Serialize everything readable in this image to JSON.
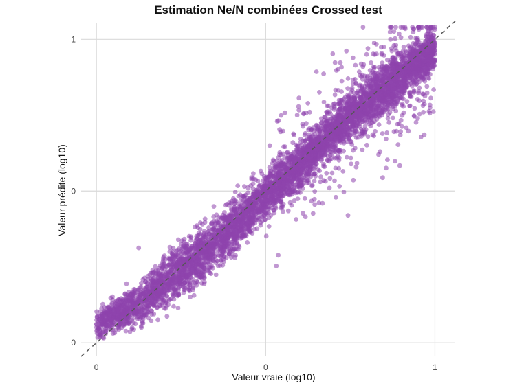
{
  "chart_data": {
    "type": "scatter",
    "title": "Estimation Ne/N combinées Crossed test",
    "xlabel": "Valeur vraie (log10)",
    "ylabel": "Valeur prédite (log10)",
    "x_ticks": [
      "0",
      "0",
      "1"
    ],
    "y_ticks": [
      "0",
      "0",
      "1"
    ],
    "x_tick_values": [
      -4,
      -2,
      0
    ],
    "y_tick_values": [
      -4,
      -2,
      0
    ],
    "xlim": [
      -4.18,
      0.24
    ],
    "ylim": [
      -4.17,
      0.22
    ],
    "grid": true,
    "point_color": "#8E44AD",
    "point_alpha": 0.55,
    "reference_line": {
      "style": "dashed",
      "color": "#555555",
      "slope": 1,
      "intercept": 0
    },
    "density_trend": [
      {
        "x": -4.0,
        "y_center": -3.75,
        "spread": 0.15
      },
      {
        "x": -3.5,
        "y_center": -3.5,
        "spread": 0.22
      },
      {
        "x": -3.0,
        "y_center": -3.05,
        "spread": 0.3
      },
      {
        "x": -2.5,
        "y_center": -2.6,
        "spread": 0.28
      },
      {
        "x": -2.0,
        "y_center": -2.05,
        "spread": 0.25
      },
      {
        "x": -1.5,
        "y_center": -1.55,
        "spread": 0.25
      },
      {
        "x": -1.0,
        "y_center": -1.0,
        "spread": 0.25
      },
      {
        "x": -0.5,
        "y_center": -0.55,
        "spread": 0.3
      },
      {
        "x": 0.0,
        "y_center": -0.15,
        "spread": 0.22
      }
    ],
    "sample_points": [
      {
        "x": -3.9,
        "y": -3.7
      },
      {
        "x": -3.7,
        "y": -3.8
      },
      {
        "x": -3.5,
        "y": -3.4
      },
      {
        "x": -3.3,
        "y": -3.35
      },
      {
        "x": -3.0,
        "y": -3.1
      },
      {
        "x": -2.8,
        "y": -2.75
      },
      {
        "x": -2.5,
        "y": -2.6
      },
      {
        "x": -2.2,
        "y": -2.25
      },
      {
        "x": -2.0,
        "y": -2.0
      },
      {
        "x": -1.7,
        "y": -1.65
      },
      {
        "x": -1.5,
        "y": -1.5
      },
      {
        "x": -1.2,
        "y": -1.2
      },
      {
        "x": -1.0,
        "y": -0.95
      },
      {
        "x": -0.7,
        "y": -0.75
      },
      {
        "x": -0.5,
        "y": -0.6
      },
      {
        "x": -0.3,
        "y": -0.2
      },
      {
        "x": -0.1,
        "y": -0.1
      },
      {
        "x": 0.0,
        "y": -0.05
      },
      {
        "x": -0.5,
        "y": -0.25
      },
      {
        "x": -0.8,
        "y": -0.5
      },
      {
        "x": -0.3,
        "y": -0.7
      },
      {
        "x": -0.07,
        "y": -0.95
      },
      {
        "x": -1.1,
        "y": -0.55
      },
      {
        "x": -3.5,
        "y": -2.75
      }
    ]
  }
}
